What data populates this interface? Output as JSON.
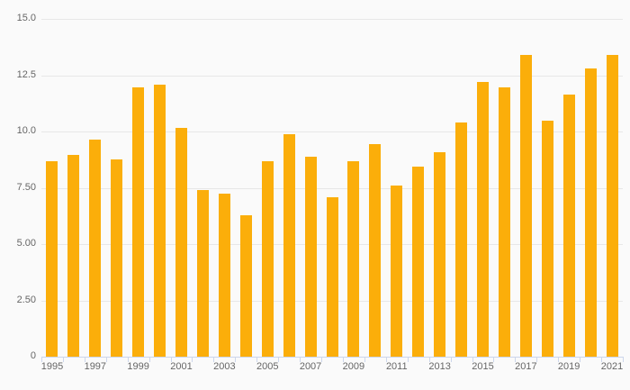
{
  "chart": {
    "colors": {
      "background": "#fafafa",
      "bar": "#FBAE0A",
      "grid": "#e7e7e7",
      "axis": "#ccd6eb",
      "label": "#666666"
    }
  },
  "chart_data": {
    "type": "bar",
    "categories": [
      "1995",
      "1996",
      "1997",
      "1998",
      "1999",
      "2000",
      "2001",
      "2002",
      "2003",
      "2004",
      "2005",
      "2006",
      "2007",
      "2008",
      "2009",
      "2010",
      "2011",
      "2012",
      "2013",
      "2014",
      "2015",
      "2016",
      "2017",
      "2018",
      "2019",
      "2020",
      "2021"
    ],
    "values": [
      8.7,
      8.95,
      9.65,
      8.75,
      11.95,
      12.1,
      10.15,
      7.4,
      7.25,
      6.3,
      8.7,
      9.9,
      8.9,
      7.1,
      8.7,
      9.45,
      7.6,
      8.45,
      9.1,
      10.4,
      12.2,
      11.95,
      13.4,
      10.5,
      11.65,
      12.8,
      13.4
    ],
    "ylim": [
      0,
      15
    ],
    "yticks": {
      "values": [
        0,
        2.5,
        5,
        7.5,
        10,
        12.5,
        15
      ],
      "labels": [
        "0",
        "2.50",
        "5.00",
        "7.50",
        "10.0",
        "12.5",
        "15.0"
      ]
    },
    "xticks": {
      "labeled_categories": [
        "1995",
        "1997",
        "1999",
        "2001",
        "2003",
        "2005",
        "2007",
        "2009",
        "2011",
        "2013",
        "2015",
        "2017",
        "2019",
        "2021"
      ]
    },
    "grid": true,
    "legend": false
  }
}
